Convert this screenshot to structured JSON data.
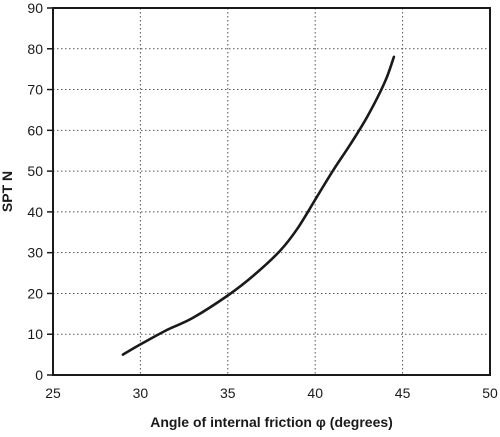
{
  "chart_data": {
    "type": "line",
    "title": "",
    "xlabel": "Angle of internal friction φ (degrees)",
    "ylabel": "SPT N",
    "xlim": [
      25,
      50
    ],
    "ylim": [
      0,
      90
    ],
    "x_ticks": [
      25,
      30,
      35,
      40,
      45,
      50
    ],
    "y_ticks": [
      0,
      10,
      20,
      30,
      40,
      50,
      60,
      70,
      80,
      90
    ],
    "grid": true,
    "grid_style": "dotted",
    "legend": "none",
    "series": [
      {
        "color": "#1a1a1a",
        "x": [
          29.0,
          30.0,
          31.5,
          33.0,
          35.0,
          36.5,
          38.0,
          39.0,
          40.0,
          41.0,
          42.0,
          43.0,
          44.0,
          44.5
        ],
        "y": [
          5,
          7.5,
          11,
          14,
          19.5,
          24.5,
          30.5,
          36,
          43,
          50,
          56.5,
          63.5,
          72,
          78
        ]
      }
    ]
  }
}
